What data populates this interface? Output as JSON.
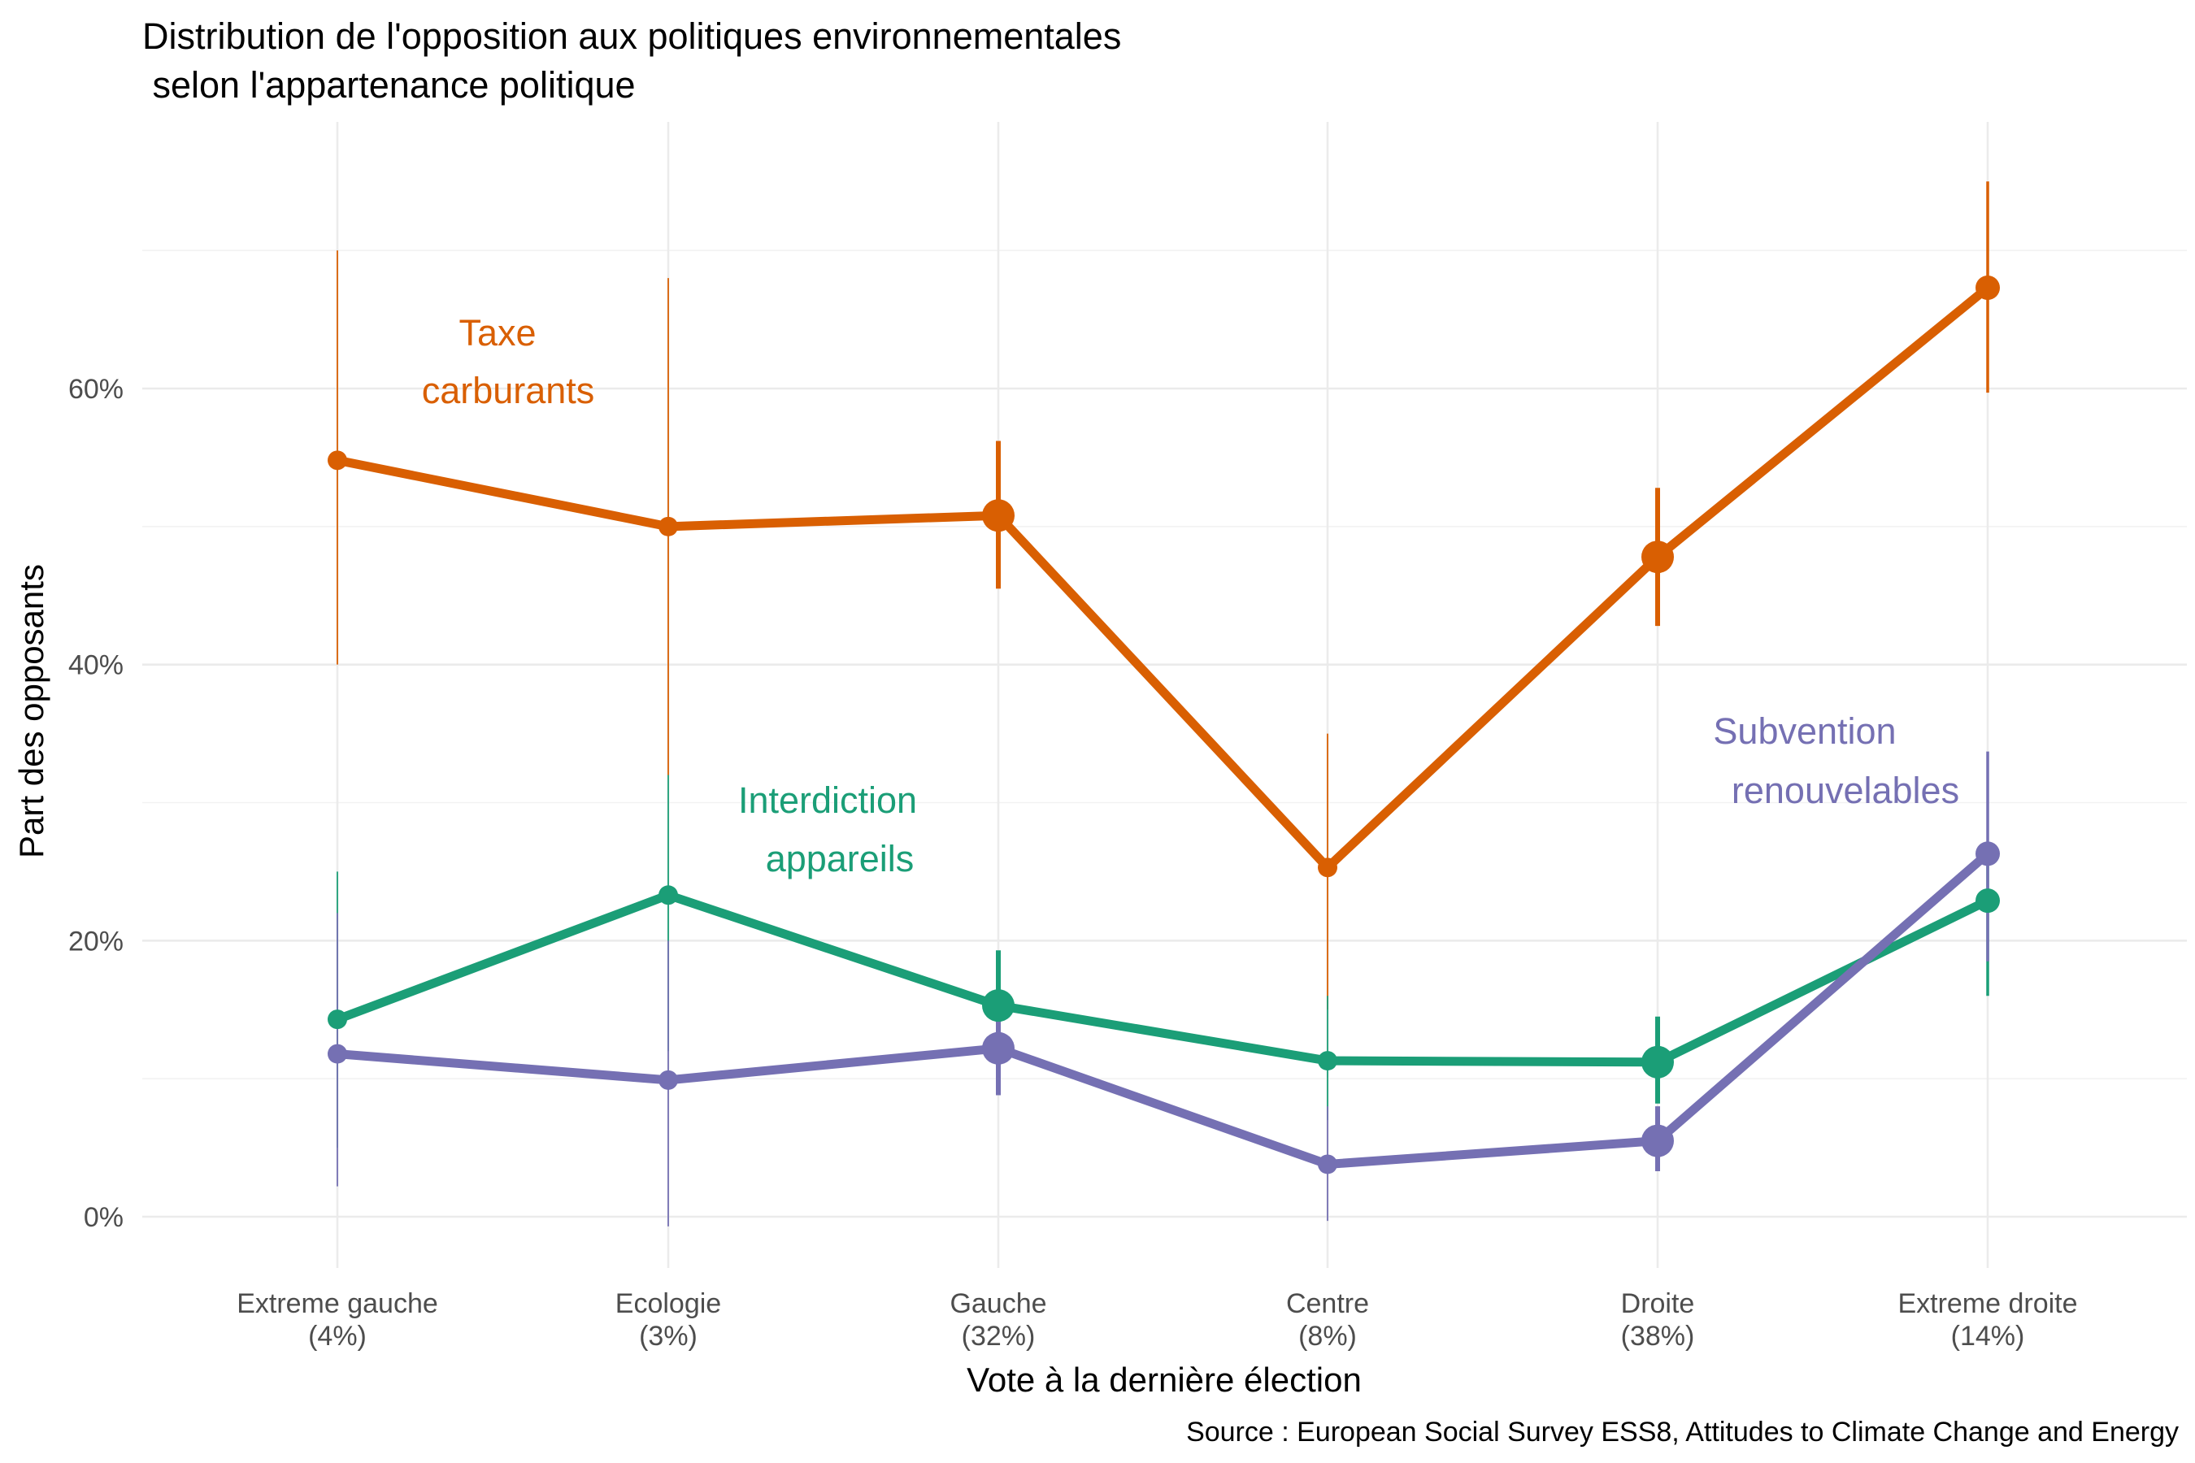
{
  "chart_data": {
    "type": "line",
    "title_line1": "Distribution de l'opposition aux politiques environnementales",
    "title_line2": " selon l'appartenance politique",
    "xlabel": "Vote à la dernière élection",
    "ylabel": "Part des opposants",
    "caption": "Source : European Social Survey ESS8, Attitudes to Climate Change and Energy",
    "ylim": [
      -0.035,
      0.79
    ],
    "yticks": [
      0,
      0.2,
      0.4,
      0.6
    ],
    "ytick_labels": [
      "0%",
      "20%",
      "40%",
      "60%"
    ],
    "grid": true,
    "legend": "none (direct labels)",
    "categories": [
      {
        "name": "Extreme gauche",
        "share": "(4%)"
      },
      {
        "name": "Ecologie",
        "share": "(3%)"
      },
      {
        "name": "Gauche",
        "share": "(32%)"
      },
      {
        "name": "Centre",
        "share": "(8%)"
      },
      {
        "name": "Droite",
        "share": "(38%)"
      },
      {
        "name": "Extreme droite",
        "share": "(14%)"
      }
    ],
    "category_weights": [
      0.04,
      0.03,
      0.32,
      0.08,
      0.38,
      0.14
    ],
    "series": [
      {
        "key": "taxe",
        "label_line1": "Taxe",
        "label_line2": "carburants",
        "color": "#D95F02",
        "values": [
          0.548,
          0.5,
          0.508,
          0.253,
          0.478,
          0.673
        ],
        "lower": [
          0.4,
          0.32,
          0.455,
          0.15,
          0.428,
          0.597
        ],
        "upper": [
          0.7,
          0.68,
          0.562,
          0.35,
          0.528,
          0.75
        ]
      },
      {
        "key": "interdiction",
        "label_line1": "Interdiction",
        "label_line2": "appareils",
        "color": "#1B9E77",
        "values": [
          0.143,
          0.233,
          0.153,
          0.113,
          0.112,
          0.229
        ],
        "lower": [
          0.05,
          0.12,
          0.12,
          0.07,
          0.082,
          0.16
        ],
        "upper": [
          0.25,
          0.32,
          0.193,
          0.16,
          0.145,
          0.26
        ]
      },
      {
        "key": "subvention",
        "label_line1": "Subvention",
        "label_line2": "renouvelables",
        "color": "#7570B3",
        "values": [
          0.118,
          0.099,
          0.122,
          0.038,
          0.055,
          0.263
        ],
        "lower": [
          0.022,
          -0.007,
          0.088,
          -0.003,
          0.033,
          0.185
        ],
        "upper": [
          0.22,
          0.2,
          0.155,
          0.08,
          0.08,
          0.337
        ]
      }
    ]
  }
}
